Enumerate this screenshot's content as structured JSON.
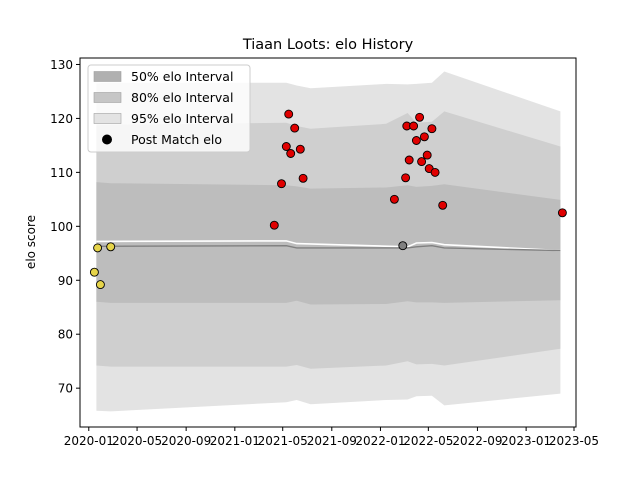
{
  "chart_data": {
    "type": "scatter",
    "title": "Tiaan Loots: elo History",
    "xlabel": "",
    "ylabel": "elo score",
    "ylim": [
      62.8,
      131.2
    ],
    "xlim": [
      "2019-12-10",
      "2023-05-06"
    ],
    "yticks": [
      70,
      80,
      90,
      100,
      110,
      120,
      130
    ],
    "xticks": [
      {
        "date": "2020-01-01",
        "label": "2020-01"
      },
      {
        "date": "2020-05-01",
        "label": "2020-05"
      },
      {
        "date": "2020-09-01",
        "label": "2020-09"
      },
      {
        "date": "2021-01-01",
        "label": "2021-01"
      },
      {
        "date": "2021-05-01",
        "label": "2021-05"
      },
      {
        "date": "2021-09-01",
        "label": "2021-09"
      },
      {
        "date": "2022-01-01",
        "label": "2022-01"
      },
      {
        "date": "2022-05-01",
        "label": "2022-05"
      },
      {
        "date": "2022-09-01",
        "label": "2022-09"
      },
      {
        "date": "2023-01-01",
        "label": "2023-01"
      },
      {
        "date": "2023-05-01",
        "label": "2023-05"
      }
    ],
    "legend_position": "top-left",
    "legend": [
      {
        "label": "50% elo Interval",
        "type": "band",
        "color": "#b0b0b0"
      },
      {
        "label": "80% elo Interval",
        "type": "band",
        "color": "#c6c6c6"
      },
      {
        "label": "95% elo Interval",
        "type": "band",
        "color": "#e3e3e3"
      },
      {
        "label": "Post Match elo",
        "type": "marker",
        "color": "#000000"
      }
    ],
    "bands": [
      {
        "name": "95% elo Interval",
        "color": "#e3e3e3",
        "points": [
          {
            "x": "2020-01-20",
            "low": 65.8,
            "high": 126.5
          },
          {
            "x": "2020-02-25",
            "low": 65.7,
            "high": 126.6
          },
          {
            "x": "2021-05-10",
            "low": 67.4,
            "high": 126.6
          },
          {
            "x": "2021-06-05",
            "low": 67.8,
            "high": 126.1
          },
          {
            "x": "2021-07-10",
            "low": 67.0,
            "high": 125.6
          },
          {
            "x": "2022-01-15",
            "low": 67.8,
            "high": 126.4
          },
          {
            "x": "2022-03-10",
            "low": 67.9,
            "high": 126.3
          },
          {
            "x": "2022-04-01",
            "low": 68.5,
            "high": 126.4
          },
          {
            "x": "2022-05-10",
            "low": 68.6,
            "high": 126.6
          },
          {
            "x": "2022-06-10",
            "low": 66.8,
            "high": 128.7
          },
          {
            "x": "2023-03-28",
            "low": 69.0,
            "high": 121.3
          }
        ]
      },
      {
        "name": "80% elo Interval",
        "color": "#cfcfcf",
        "points": [
          {
            "x": "2020-01-20",
            "low": 74.2,
            "high": 118.7
          },
          {
            "x": "2020-02-25",
            "low": 74.0,
            "high": 118.8
          },
          {
            "x": "2021-05-10",
            "low": 74.0,
            "high": 119.2
          },
          {
            "x": "2021-06-05",
            "low": 74.3,
            "high": 118.6
          },
          {
            "x": "2021-07-10",
            "low": 73.6,
            "high": 118.1
          },
          {
            "x": "2022-01-15",
            "low": 74.2,
            "high": 119.0
          },
          {
            "x": "2022-03-10",
            "low": 75.0,
            "high": 121.0
          },
          {
            "x": "2022-04-01",
            "low": 74.4,
            "high": 119.2
          },
          {
            "x": "2022-05-10",
            "low": 74.5,
            "high": 119.4
          },
          {
            "x": "2022-06-10",
            "low": 74.2,
            "high": 121.3
          },
          {
            "x": "2023-03-28",
            "low": 77.3,
            "high": 114.8
          }
        ]
      },
      {
        "name": "50% elo Interval",
        "color": "#bdbdbd",
        "points": [
          {
            "x": "2020-01-20",
            "low": 86.0,
            "high": 108.2
          },
          {
            "x": "2020-02-25",
            "low": 85.8,
            "high": 108.0
          },
          {
            "x": "2021-05-10",
            "low": 85.8,
            "high": 107.6
          },
          {
            "x": "2021-06-05",
            "low": 86.2,
            "high": 107.4
          },
          {
            "x": "2021-07-10",
            "low": 85.5,
            "high": 107.0
          },
          {
            "x": "2022-01-15",
            "low": 85.6,
            "high": 107.2
          },
          {
            "x": "2022-03-10",
            "low": 86.1,
            "high": 107.6
          },
          {
            "x": "2022-04-01",
            "low": 85.9,
            "high": 107.3
          },
          {
            "x": "2022-05-10",
            "low": 85.9,
            "high": 107.5
          },
          {
            "x": "2022-06-10",
            "low": 85.8,
            "high": 107.8
          },
          {
            "x": "2023-03-28",
            "low": 86.3,
            "high": 104.9
          }
        ]
      }
    ],
    "lines": [
      {
        "name": "upper",
        "color": "#ffffff",
        "width": 1.6,
        "points": [
          {
            "x": "2020-01-20",
            "y": 97.2
          },
          {
            "x": "2021-05-10",
            "y": 97.3
          },
          {
            "x": "2021-06-05",
            "y": 96.8
          },
          {
            "x": "2022-03-10",
            "y": 96.2
          },
          {
            "x": "2022-04-01",
            "y": 96.9
          },
          {
            "x": "2022-05-10",
            "y": 97.0
          },
          {
            "x": "2022-06-10",
            "y": 96.6
          },
          {
            "x": "2023-03-28",
            "y": 95.5
          }
        ]
      },
      {
        "name": "mean",
        "color": "#808080",
        "width": 1.4,
        "points": [
          {
            "x": "2020-01-20",
            "y": 96.3
          },
          {
            "x": "2021-05-10",
            "y": 96.4
          },
          {
            "x": "2021-06-05",
            "y": 96.0
          },
          {
            "x": "2022-03-10",
            "y": 96.0
          },
          {
            "x": "2022-04-01",
            "y": 96.2
          },
          {
            "x": "2022-05-10",
            "y": 96.4
          },
          {
            "x": "2022-06-10",
            "y": 96.0
          },
          {
            "x": "2023-03-28",
            "y": 95.5
          }
        ]
      }
    ],
    "series": [
      {
        "color": "#e6d44a",
        "points": [
          {
            "x": "2020-01-15",
            "y": 91.5
          },
          {
            "x": "2020-01-23",
            "y": 96.0
          },
          {
            "x": "2020-01-30",
            "y": 89.2
          },
          {
            "x": "2020-02-25",
            "y": 96.2
          }
        ]
      },
      {
        "color": "#e00000",
        "points": [
          {
            "x": "2021-04-10",
            "y": 100.2
          },
          {
            "x": "2021-04-28",
            "y": 107.9
          },
          {
            "x": "2021-05-10",
            "y": 114.8
          },
          {
            "x": "2021-05-16",
            "y": 120.8
          },
          {
            "x": "2021-05-21",
            "y": 113.5
          },
          {
            "x": "2021-05-31",
            "y": 118.2
          },
          {
            "x": "2021-06-14",
            "y": 114.3
          },
          {
            "x": "2021-06-21",
            "y": 108.9
          },
          {
            "x": "2022-02-05",
            "y": 105.0
          },
          {
            "x": "2022-03-05",
            "y": 109.0
          },
          {
            "x": "2022-03-08",
            "y": 118.6
          },
          {
            "x": "2022-03-14",
            "y": 112.3
          },
          {
            "x": "2022-03-25",
            "y": 118.6
          },
          {
            "x": "2022-04-01",
            "y": 115.9
          },
          {
            "x": "2022-04-09",
            "y": 120.2
          },
          {
            "x": "2022-04-14",
            "y": 112.0
          },
          {
            "x": "2022-04-21",
            "y": 116.6
          },
          {
            "x": "2022-04-28",
            "y": 113.2
          },
          {
            "x": "2022-05-03",
            "y": 110.7
          },
          {
            "x": "2022-05-10",
            "y": 118.1
          },
          {
            "x": "2022-05-18",
            "y": 110.0
          },
          {
            "x": "2022-06-06",
            "y": 103.9
          },
          {
            "x": "2023-04-02",
            "y": 102.5
          }
        ]
      },
      {
        "color": "#808080",
        "points": [
          {
            "x": "2022-02-26",
            "y": 96.4
          }
        ]
      }
    ]
  }
}
